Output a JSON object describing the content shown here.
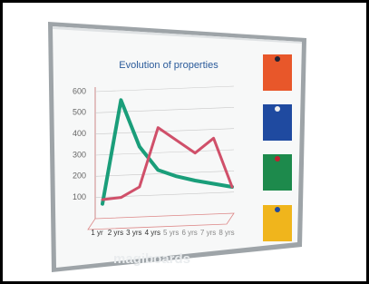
{
  "chart_data": {
    "type": "line",
    "title": "Evolution of properties",
    "categories": [
      "1 yr",
      "2 yrs",
      "3 yrs",
      "4 yrs",
      "5 yrs",
      "6 yrs",
      "7 yrs",
      "8 yrs"
    ],
    "series": [
      {
        "color": "#1a9e7a",
        "values": [
          70,
          560,
          340,
          230,
          200,
          180,
          165,
          150
        ]
      },
      {
        "color": "#d0506a",
        "values": [
          90,
          100,
          150,
          430,
          370,
          310,
          380,
          150
        ]
      }
    ],
    "ylim": [
      0,
      600
    ],
    "yticks": [
      100,
      200,
      300,
      400,
      500,
      600
    ],
    "grid": true
  },
  "watermark": "magiboards"
}
